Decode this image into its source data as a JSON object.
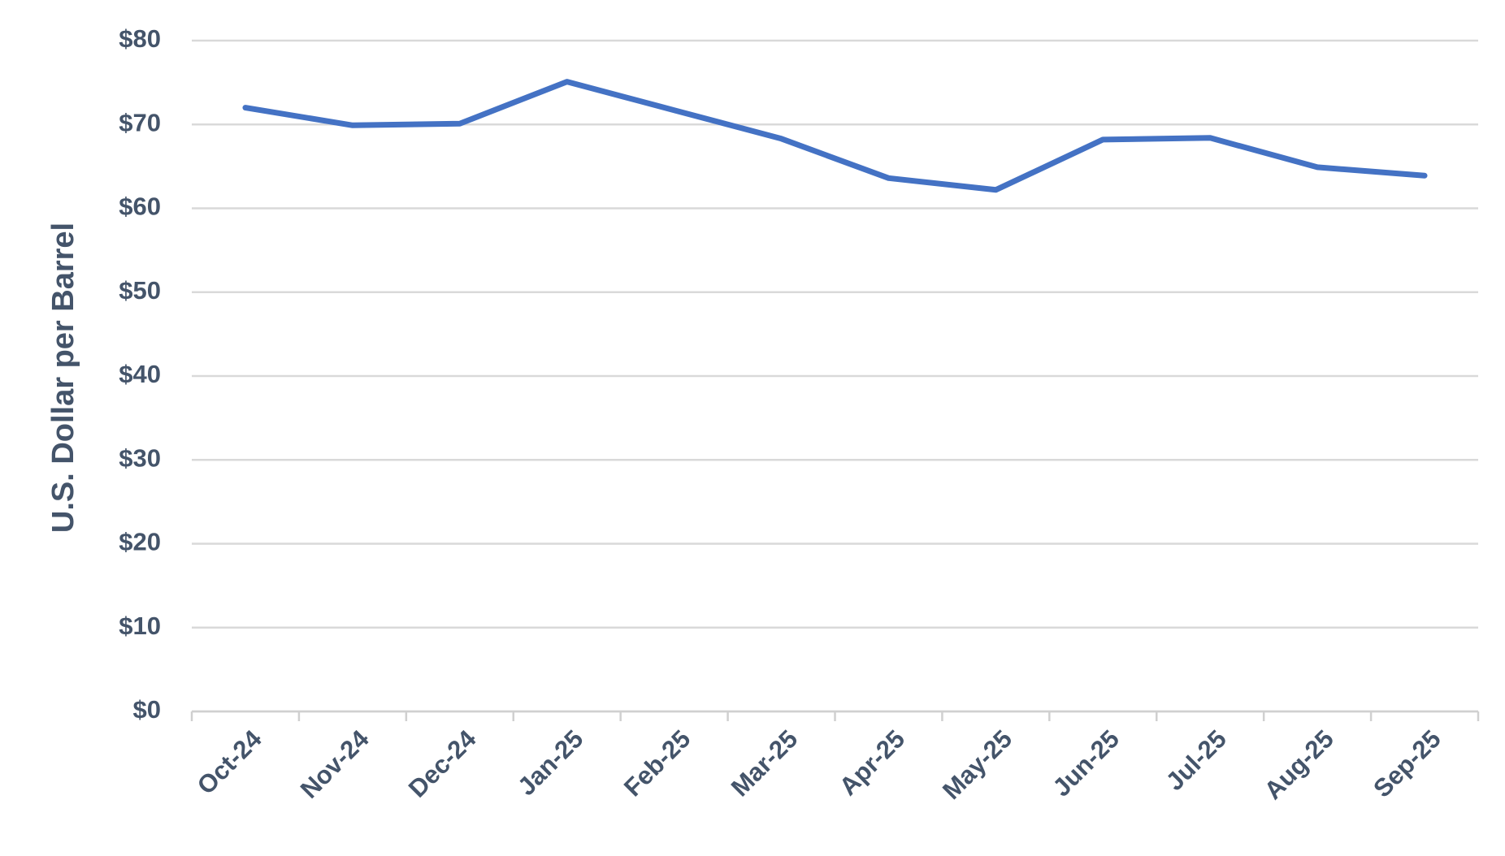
{
  "chart_data": {
    "type": "line",
    "y_label": "U.S. Dollar per Barrel",
    "categories": [
      "Oct-24",
      "Nov-24",
      "Dec-24",
      "Jan-25",
      "Feb-25",
      "Mar-25",
      "Apr-25",
      "May-25",
      "Jun-25",
      "Jul-25",
      "Aug-25",
      "Sep-25"
    ],
    "series": [
      {
        "color": "#4472c4",
        "values": [
          72.0,
          69.9,
          70.1,
          75.1,
          71.7,
          68.3,
          63.6,
          62.2,
          68.2,
          68.4,
          64.9,
          63.9
        ]
      }
    ],
    "ylim": [
      0,
      80
    ],
    "yticks": [
      {
        "value": 0,
        "label": "$0"
      },
      {
        "value": 10,
        "label": "$10"
      },
      {
        "value": 20,
        "label": "$20"
      },
      {
        "value": 30,
        "label": "$30"
      },
      {
        "value": 40,
        "label": "$40"
      },
      {
        "value": 50,
        "label": "$50"
      },
      {
        "value": 60,
        "label": "$60"
      },
      {
        "value": 70,
        "label": "$70"
      },
      {
        "value": 80,
        "label": "$80"
      }
    ],
    "grid": true
  }
}
